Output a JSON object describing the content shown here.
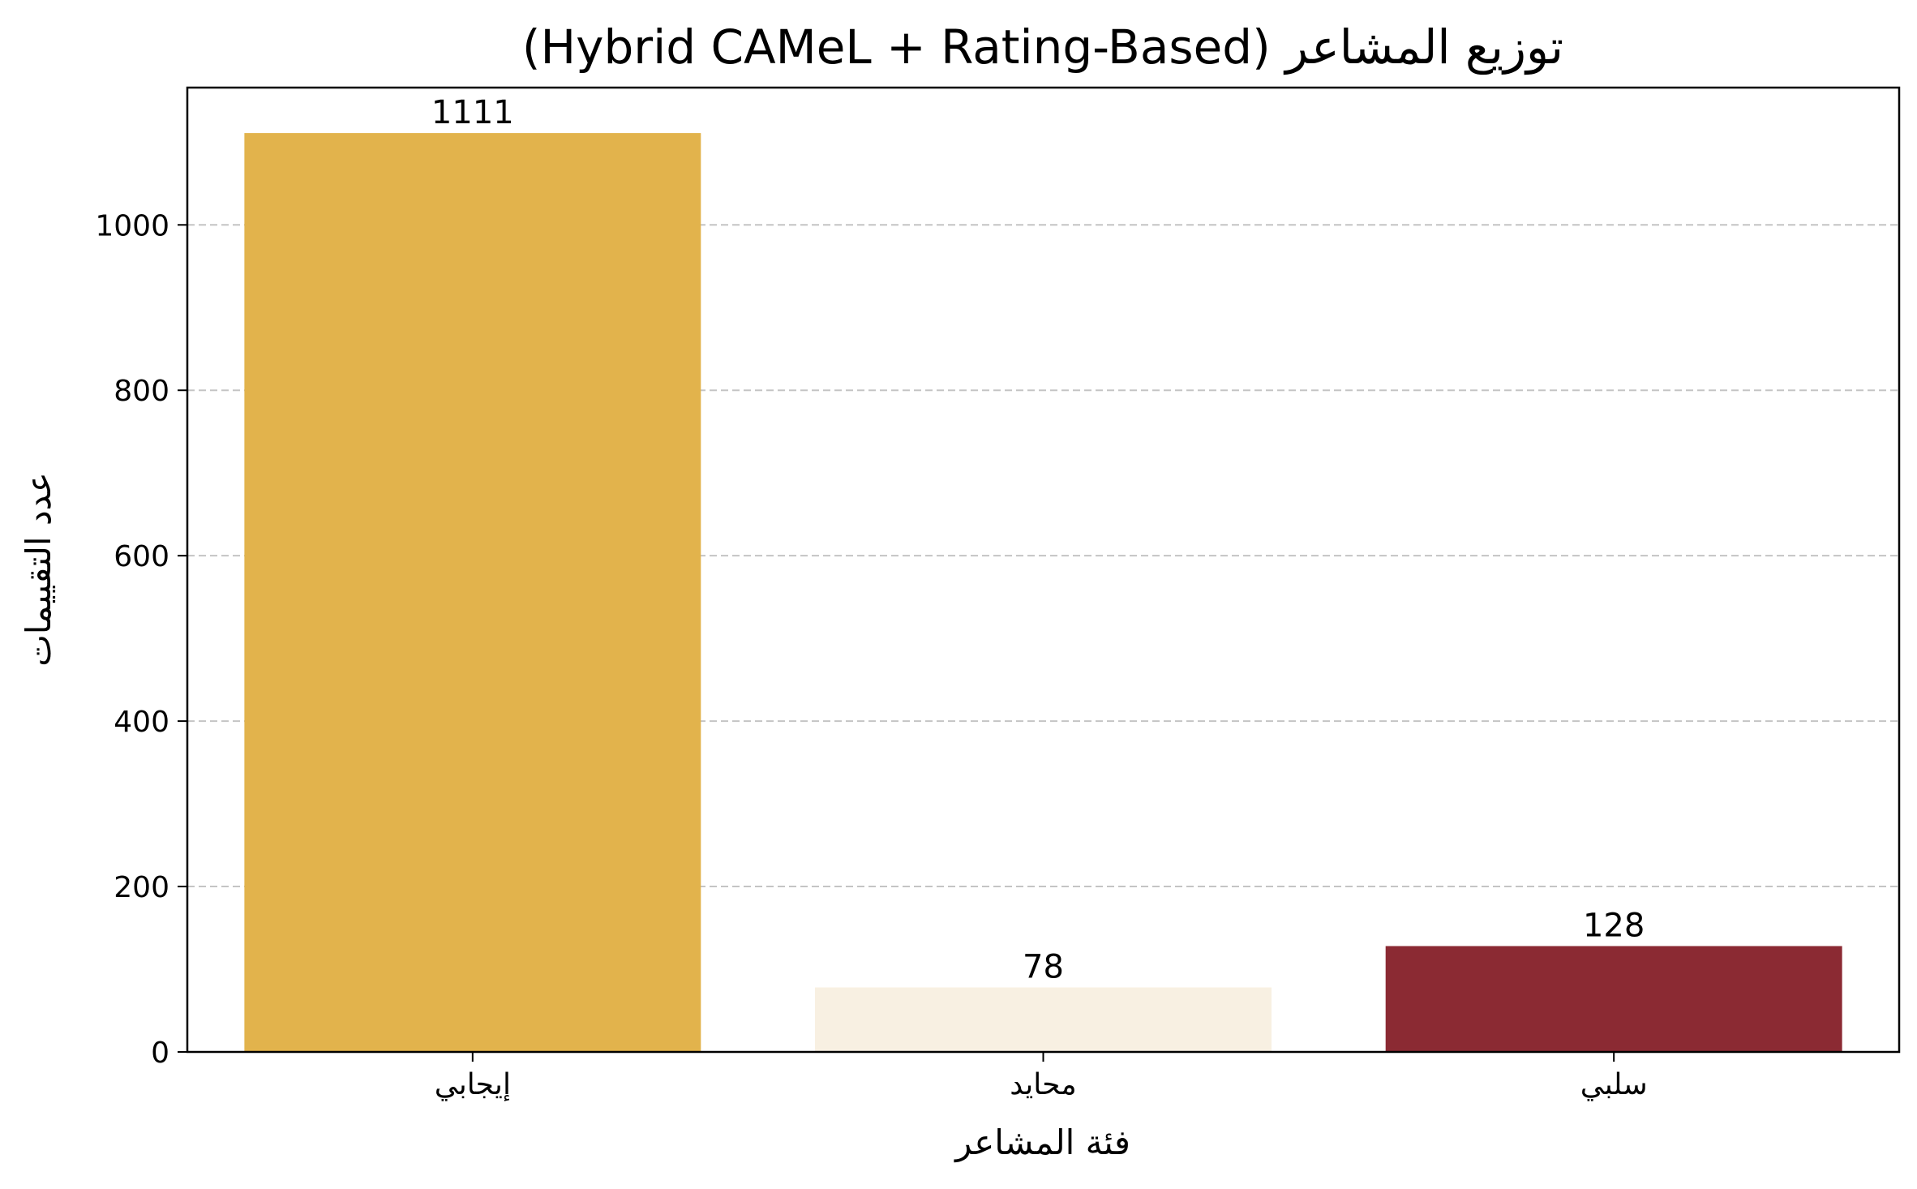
{
  "chart_data": {
    "type": "bar",
    "title": "(Hybrid CAMeL + Rating-Based) توزيع المشاعر",
    "xlabel": "فئة المشاعر",
    "ylabel": "عدد التقييمات",
    "categories": [
      "إيجابي",
      "محايد",
      "سلبي"
    ],
    "values": [
      1111,
      78,
      128
    ],
    "colors": [
      "#e2b34c",
      "#f8f0e2",
      "#8b2a33"
    ],
    "ylim": [
      0,
      1166
    ],
    "yticks": [
      0,
      200,
      400,
      600,
      800,
      1000
    ],
    "grid": "y-dashed",
    "legend": "none"
  }
}
